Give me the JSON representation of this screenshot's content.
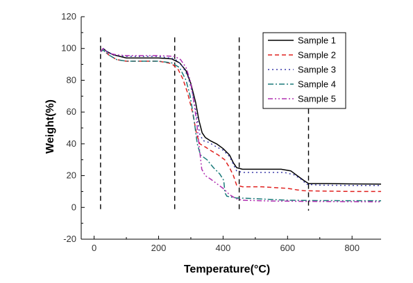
{
  "chart_data": {
    "type": "line",
    "xlabel": "Temperature(°C)",
    "ylabel": "Weight(%)",
    "xlim": [
      -40,
      890
    ],
    "ylim": [
      -20,
      120
    ],
    "xticks": [
      0,
      200,
      400,
      600,
      800
    ],
    "yticks": [
      -20,
      0,
      20,
      40,
      60,
      80,
      100,
      120
    ],
    "grid": false,
    "legend_position": "top-right",
    "vertical_markers": [
      {
        "x": 20,
        "y_range": [
          -2,
          107
        ]
      },
      {
        "x": 250,
        "y_range": [
          -2,
          107
        ]
      },
      {
        "x": 450,
        "y_range": [
          -2,
          107
        ]
      },
      {
        "x": 665,
        "y_range": [
          -2,
          62
        ]
      }
    ],
    "series": [
      {
        "name": "Sample 1",
        "color": "#000000",
        "dash": "solid",
        "points": [
          [
            20,
            98
          ],
          [
            28,
            100
          ],
          [
            40,
            98
          ],
          [
            60,
            96
          ],
          [
            100,
            94
          ],
          [
            200,
            94
          ],
          [
            240,
            93.5
          ],
          [
            265,
            91
          ],
          [
            285,
            86
          ],
          [
            300,
            78
          ],
          [
            315,
            66
          ],
          [
            325,
            55
          ],
          [
            335,
            47
          ],
          [
            345,
            44
          ],
          [
            360,
            42
          ],
          [
            380,
            40
          ],
          [
            400,
            37
          ],
          [
            420,
            33
          ],
          [
            432,
            28
          ],
          [
            442,
            25
          ],
          [
            460,
            24
          ],
          [
            520,
            24
          ],
          [
            580,
            24
          ],
          [
            610,
            23
          ],
          [
            630,
            20
          ],
          [
            650,
            17
          ],
          [
            665,
            15
          ],
          [
            720,
            15
          ],
          [
            800,
            14.8
          ],
          [
            890,
            14.7
          ]
        ]
      },
      {
        "name": "Sample 2",
        "color": "#e0201e",
        "dash": "6,4",
        "points": [
          [
            20,
            98
          ],
          [
            28,
            99
          ],
          [
            45,
            96
          ],
          [
            70,
            93
          ],
          [
            100,
            92
          ],
          [
            200,
            92
          ],
          [
            240,
            90.5
          ],
          [
            260,
            87
          ],
          [
            275,
            81
          ],
          [
            290,
            72
          ],
          [
            305,
            60
          ],
          [
            318,
            46
          ],
          [
            328,
            40
          ],
          [
            345,
            38
          ],
          [
            360,
            36
          ],
          [
            385,
            33
          ],
          [
            405,
            30
          ],
          [
            420,
            25
          ],
          [
            432,
            20
          ],
          [
            442,
            14
          ],
          [
            460,
            13
          ],
          [
            520,
            13
          ],
          [
            600,
            12
          ],
          [
            630,
            11
          ],
          [
            650,
            10.5
          ],
          [
            700,
            10.3
          ],
          [
            800,
            10
          ],
          [
            890,
            10
          ]
        ]
      },
      {
        "name": "Sample 3",
        "color": "#3838a8",
        "dash": "2,4",
        "points": [
          [
            20,
            98
          ],
          [
            28,
            100
          ],
          [
            40,
            98
          ],
          [
            60,
            96
          ],
          [
            100,
            95
          ],
          [
            200,
            95
          ],
          [
            250,
            93.5
          ],
          [
            270,
            90
          ],
          [
            290,
            83
          ],
          [
            305,
            72
          ],
          [
            318,
            58
          ],
          [
            328,
            46
          ],
          [
            338,
            42
          ],
          [
            355,
            41
          ],
          [
            380,
            38
          ],
          [
            400,
            36
          ],
          [
            420,
            32
          ],
          [
            432,
            27
          ],
          [
            442,
            23
          ],
          [
            460,
            22
          ],
          [
            520,
            22
          ],
          [
            590,
            22
          ],
          [
            620,
            20.5
          ],
          [
            640,
            18
          ],
          [
            660,
            14.5
          ],
          [
            700,
            14
          ],
          [
            800,
            13.8
          ],
          [
            890,
            13.8
          ]
        ]
      },
      {
        "name": "Sample 4",
        "color": "#1a7a7a",
        "dash": "8,3,2,3",
        "points": [
          [
            20,
            98
          ],
          [
            28,
            99
          ],
          [
            45,
            96
          ],
          [
            70,
            93
          ],
          [
            100,
            92
          ],
          [
            200,
            92
          ],
          [
            240,
            91
          ],
          [
            265,
            88
          ],
          [
            285,
            80
          ],
          [
            298,
            70
          ],
          [
            310,
            55
          ],
          [
            320,
            40
          ],
          [
            330,
            33
          ],
          [
            350,
            30
          ],
          [
            370,
            25
          ],
          [
            390,
            21
          ],
          [
            402,
            17
          ],
          [
            406,
            9
          ],
          [
            412,
            7
          ],
          [
            440,
            6
          ],
          [
            500,
            5.5
          ],
          [
            600,
            4.5
          ],
          [
            700,
            4.3
          ],
          [
            890,
            4.2
          ]
        ]
      },
      {
        "name": "Sample 5",
        "color": "#b030b0",
        "dash": "7,3,2,3,2,3",
        "points": [
          [
            20,
            98
          ],
          [
            28,
            100
          ],
          [
            45,
            97
          ],
          [
            70,
            96
          ],
          [
            100,
            95.5
          ],
          [
            200,
            95.5
          ],
          [
            250,
            95
          ],
          [
            268,
            93
          ],
          [
            285,
            88
          ],
          [
            298,
            80
          ],
          [
            308,
            68
          ],
          [
            318,
            54
          ],
          [
            326,
            38
          ],
          [
            334,
            24
          ],
          [
            345,
            20
          ],
          [
            360,
            18
          ],
          [
            380,
            15
          ],
          [
            400,
            12
          ],
          [
            420,
            8
          ],
          [
            440,
            5.5
          ],
          [
            460,
            4.5
          ],
          [
            550,
            4
          ],
          [
            650,
            3.8
          ],
          [
            890,
            3.5
          ]
        ]
      }
    ]
  }
}
